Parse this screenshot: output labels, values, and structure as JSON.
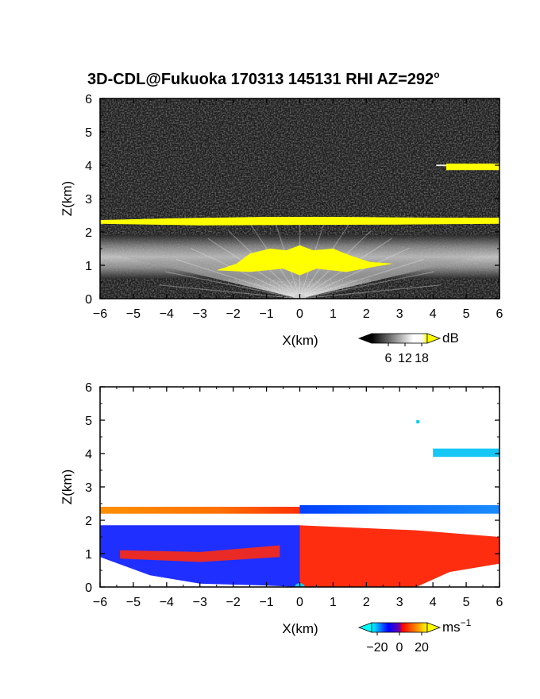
{
  "title": "3D-CDL@Fukuoka 170313 145131 RHI AZ=292",
  "title_superscript": "o",
  "chart_data": [
    {
      "type": "heatmap",
      "quantity": "echo intensity",
      "xlabel": "X(km)",
      "ylabel": "Z(km)",
      "xlim": [
        -6,
        6
      ],
      "ylim": [
        0,
        6
      ],
      "x_ticks": [
        "-6",
        "-5",
        "-4",
        "-3",
        "-2",
        "-1",
        "0",
        "1",
        "2",
        "3",
        "4",
        "5",
        "6"
      ],
      "y_ticks": [
        "0",
        "1",
        "2",
        "3",
        "4",
        "5",
        "6"
      ],
      "colorbar": {
        "unit": "dB",
        "ticks": [
          "6",
          "12",
          "18"
        ],
        "tick_values": [
          6,
          12,
          18
        ],
        "range": [
          0,
          20
        ],
        "colors": [
          "#000000",
          "#ffffff",
          "#ffff00"
        ]
      },
      "features": [
        {
          "feature": "background noise",
          "z_range": [
            0,
            6
          ],
          "level": "dark gray"
        },
        {
          "feature": "layer",
          "x_range": [
            -6,
            6
          ],
          "z_range": [
            2.15,
            2.5
          ],
          "level": "above 18 dB"
        },
        {
          "feature": "layer",
          "x_range": [
            4.1,
            6
          ],
          "z_range": [
            3.9,
            4.05
          ],
          "level": "above 18 dB"
        },
        {
          "feature": "fan near lidar",
          "x_range": [
            -2.5,
            2.8
          ],
          "z_range": [
            0.8,
            1.6
          ],
          "level": "above 18 dB"
        },
        {
          "feature": "band",
          "x_range": [
            -6,
            6
          ],
          "z_range": [
            0.6,
            1.9
          ],
          "level": "gray-white"
        }
      ]
    },
    {
      "type": "heatmap",
      "quantity": "radial velocity",
      "xlabel": "X(km)",
      "ylabel": "Z(km)",
      "xlim": [
        -6,
        6
      ],
      "ylim": [
        0,
        6
      ],
      "x_ticks": [
        "-6",
        "-5",
        "-4",
        "-3",
        "-2",
        "-1",
        "0",
        "1",
        "2",
        "3",
        "4",
        "5",
        "6"
      ],
      "y_ticks": [
        "0",
        "1",
        "2",
        "3",
        "4",
        "5",
        "6"
      ],
      "colorbar": {
        "unit": "ms",
        "unit_superscript": "−1",
        "ticks": [
          "−20",
          "0",
          "20"
        ],
        "tick_values": [
          -20,
          0,
          20
        ],
        "range": [
          -25,
          25
        ],
        "colors": [
          "#00ffff",
          "#0000ff",
          "#ff0000",
          "#ffff00"
        ]
      },
      "features": [
        {
          "feature": "layer",
          "x_range": [
            -6,
            0
          ],
          "z_range": [
            2.15,
            2.5
          ],
          "velocity": 12
        },
        {
          "feature": "layer",
          "x_range": [
            0,
            6
          ],
          "z_range": [
            2.15,
            2.5
          ],
          "velocity": -7
        },
        {
          "feature": "layer",
          "x_range": [
            4,
            6
          ],
          "z_range": [
            3.9,
            4.15
          ],
          "velocity": -18
        },
        {
          "feature": "lower band",
          "x_range": [
            -6,
            0
          ],
          "z_range": [
            0,
            1.9
          ],
          "velocity": -10
        },
        {
          "feature": "lower band",
          "x_range": [
            0,
            6
          ],
          "z_range": [
            0,
            1.9
          ],
          "velocity": 8
        }
      ]
    }
  ]
}
